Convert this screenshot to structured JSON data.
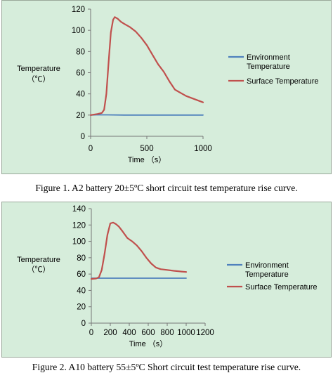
{
  "chart_data": [
    {
      "type": "line",
      "title": "",
      "ylabel": "Temperature",
      "ylabel_unit": "（℃）",
      "xlabel": "Time （s）",
      "xlim": [
        0,
        1000
      ],
      "ylim": [
        0,
        120
      ],
      "x_ticks": [
        "0",
        "500",
        "1000"
      ],
      "y_ticks": [
        "0",
        "20",
        "40",
        "60",
        "80",
        "100",
        "120"
      ],
      "grid": false,
      "legend_position": "right",
      "series": [
        {
          "name": "Environment Temperature",
          "color": "#4f81bd",
          "points": [
            [
              0,
              20
            ],
            [
              50,
              20.2
            ],
            [
              150,
              20.2
            ],
            [
              300,
              20
            ],
            [
              500,
              20
            ],
            [
              700,
              20
            ],
            [
              1000,
              20
            ]
          ]
        },
        {
          "name": "Surface Temperature",
          "color": "#c0504d",
          "points": [
            [
              0,
              20
            ],
            [
              60,
              21
            ],
            [
              100,
              22
            ],
            [
              120,
              25
            ],
            [
              140,
              40
            ],
            [
              160,
              70
            ],
            [
              180,
              98
            ],
            [
              200,
              110
            ],
            [
              215,
              112.5
            ],
            [
              240,
              111
            ],
            [
              270,
              108
            ],
            [
              300,
              106
            ],
            [
              350,
              103
            ],
            [
              400,
              99
            ],
            [
              450,
              93
            ],
            [
              500,
              86
            ],
            [
              550,
              77
            ],
            [
              600,
              68
            ],
            [
              650,
              61
            ],
            [
              700,
              52
            ],
            [
              750,
              44
            ],
            [
              800,
              41
            ],
            [
              850,
              38
            ],
            [
              900,
              36
            ],
            [
              950,
              34
            ],
            [
              1000,
              32
            ]
          ]
        }
      ]
    },
    {
      "type": "line",
      "title": "",
      "ylabel": "Temperature",
      "ylabel_unit": "（℃）",
      "xlabel": "Time （s）",
      "xlim": [
        0,
        1200
      ],
      "ylim": [
        0,
        140
      ],
      "x_ticks": [
        "0",
        "200",
        "400",
        "600",
        "800",
        "1000",
        "1200"
      ],
      "y_ticks": [
        "0",
        "20",
        "40",
        "60",
        "80",
        "100",
        "120",
        "140"
      ],
      "grid": false,
      "legend_position": "right",
      "series": [
        {
          "name": "Environment Temperature",
          "color": "#4f81bd",
          "points": [
            [
              0,
              55
            ],
            [
              200,
              55
            ],
            [
              400,
              55
            ],
            [
              600,
              55
            ],
            [
              800,
              55
            ],
            [
              1000,
              55
            ]
          ]
        },
        {
          "name": "Surface Temperature",
          "color": "#c0504d",
          "points": [
            [
              0,
              54
            ],
            [
              50,
              54.5
            ],
            [
              80,
              56
            ],
            [
              110,
              65
            ],
            [
              140,
              85
            ],
            [
              170,
              108
            ],
            [
              200,
              122
            ],
            [
              230,
              123
            ],
            [
              260,
              121
            ],
            [
              290,
              118
            ],
            [
              330,
              112
            ],
            [
              380,
              104
            ],
            [
              430,
              100
            ],
            [
              480,
              95
            ],
            [
              530,
              88
            ],
            [
              580,
              80
            ],
            [
              630,
              73
            ],
            [
              680,
              68
            ],
            [
              730,
              66
            ],
            [
              800,
              65
            ],
            [
              870,
              64
            ],
            [
              950,
              63
            ],
            [
              1000,
              62.5
            ]
          ]
        }
      ]
    }
  ],
  "captions": [
    "Figure 1. A2 battery 20±5ºC short circuit test temperature rise curve.",
    "Figure 2. A10 battery 55±5ºC Short circuit test temperature rise curve."
  ]
}
